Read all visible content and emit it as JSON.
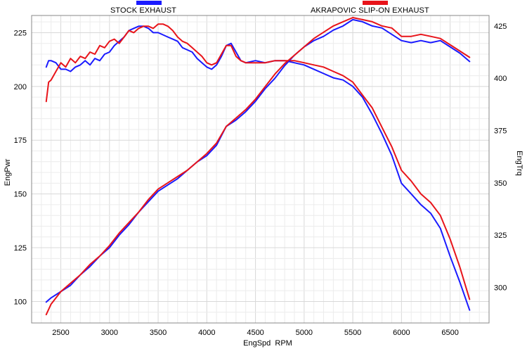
{
  "chart_data": {
    "type": "line",
    "title": "",
    "xlabel": "EngSpd  RPM",
    "ylabel_left": "EngPwr",
    "ylabel_right": "EngTrq",
    "xlim": [
      2200,
      6900
    ],
    "ylim_left": [
      90,
      233
    ],
    "ylim_right": [
      283,
      430
    ],
    "x_ticks": [
      2500,
      3000,
      3500,
      4000,
      4500,
      5000,
      5500,
      6000,
      6500
    ],
    "y_left_ticks": [
      100,
      125,
      150,
      175,
      200,
      225
    ],
    "y_right_ticks": [
      300,
      325,
      350,
      375,
      400,
      425
    ],
    "grid": true,
    "legend": [
      {
        "name": "STOCK EXHAUST",
        "color": "#1a1aff"
      },
      {
        "name": "AKRAPOVIC SLIP-ON EXHAUST",
        "color": "#e8141a"
      }
    ],
    "series": [
      {
        "name": "STOCK EXHAUST",
        "measure": "EngPwr",
        "axis": "left",
        "color": "#1a1aff",
        "x": [
          2350,
          2375,
          2400,
          2450,
          2500,
          2550,
          2600,
          2650,
          2700,
          2750,
          2800,
          2850,
          2900,
          2950,
          3000,
          3050,
          3100,
          3150,
          3200,
          3250,
          3300,
          3350,
          3400,
          3450,
          3500,
          3550,
          3600,
          3650,
          3700,
          3750,
          3800,
          3850,
          3900,
          3950,
          4000,
          4050,
          4100,
          4150,
          4200,
          4250,
          4300,
          4350,
          4400,
          4500,
          4600,
          4700,
          4800,
          4900,
          5000,
          5100,
          5200,
          5300,
          5400,
          5500,
          5600,
          5700,
          5800,
          5900,
          6000,
          6100,
          6200,
          6300,
          6400,
          6500,
          6600,
          6700
        ],
        "values": [
          209,
          212,
          212,
          211,
          208,
          208,
          207,
          209,
          210,
          212,
          210,
          213,
          212,
          215,
          216,
          219,
          221,
          223,
          226,
          227,
          228,
          228,
          227,
          225,
          225,
          224,
          223,
          222,
          221,
          218,
          217,
          216,
          213,
          211,
          209,
          208,
          210,
          214,
          219,
          220,
          216,
          212,
          211,
          212,
          211,
          212,
          212,
          211,
          210,
          208,
          206,
          204,
          203,
          200,
          195,
          187,
          178,
          168,
          155,
          150,
          145,
          141,
          134,
          121,
          109,
          96
        ]
      },
      {
        "name": "AKRAPOVIC SLIP-ON EXHAUST",
        "measure": "EngPwr",
        "axis": "left",
        "color": "#e8141a",
        "x": [
          2350,
          2375,
          2400,
          2450,
          2500,
          2550,
          2600,
          2650,
          2700,
          2750,
          2800,
          2850,
          2900,
          2950,
          3000,
          3050,
          3100,
          3150,
          3200,
          3250,
          3300,
          3350,
          3400,
          3450,
          3500,
          3550,
          3600,
          3650,
          3700,
          3750,
          3800,
          3850,
          3900,
          3950,
          4000,
          4050,
          4100,
          4150,
          4200,
          4250,
          4300,
          4350,
          4400,
          4500,
          4600,
          4700,
          4800,
          4900,
          5000,
          5100,
          5200,
          5300,
          5400,
          5500,
          5600,
          5700,
          5800,
          5900,
          6000,
          6100,
          6200,
          6300,
          6400,
          6500,
          6600,
          6700
        ],
        "values": [
          193,
          202,
          203,
          207,
          211,
          209,
          213,
          211,
          214,
          213,
          216,
          215,
          219,
          218,
          221,
          222,
          220,
          223,
          226,
          225,
          227,
          228,
          228,
          227,
          229,
          229,
          228,
          226,
          223,
          221,
          220,
          218,
          216,
          214,
          211,
          210,
          211,
          215,
          219,
          219,
          214,
          212,
          211,
          211,
          211,
          212,
          212,
          212,
          211,
          210,
          209,
          207,
          205,
          202,
          196,
          190,
          181,
          172,
          161,
          156,
          150,
          146,
          140,
          129,
          116,
          101
        ]
      },
      {
        "name": "STOCK EXHAUST",
        "measure": "EngTrq",
        "axis": "right",
        "color": "#1a1aff",
        "x": [
          2350,
          2400,
          2500,
          2600,
          2700,
          2800,
          2900,
          3000,
          3100,
          3200,
          3300,
          3400,
          3500,
          3600,
          3700,
          3800,
          3900,
          4000,
          4100,
          4200,
          4300,
          4400,
          4500,
          4600,
          4700,
          4800,
          4900,
          5000,
          5100,
          5200,
          5300,
          5400,
          5500,
          5600,
          5700,
          5800,
          5900,
          6000,
          6100,
          6200,
          6300,
          6400,
          6500,
          6600,
          6700
        ],
        "values": [
          293,
          295,
          298,
          301,
          306,
          310,
          315,
          319,
          325,
          330,
          336,
          341,
          346,
          349,
          352,
          356,
          360,
          363,
          368,
          377,
          380,
          384,
          389,
          395,
          400,
          406,
          411,
          415,
          418,
          420,
          423,
          425,
          428,
          427,
          425,
          424,
          421,
          418,
          417,
          418,
          417,
          418,
          415,
          412,
          408
        ]
      },
      {
        "name": "AKRAPOVIC SLIP-ON EXHAUST",
        "measure": "EngTrq",
        "axis": "right",
        "color": "#e8141a",
        "x": [
          2350,
          2400,
          2500,
          2600,
          2700,
          2800,
          2900,
          3000,
          3100,
          3200,
          3300,
          3400,
          3500,
          3600,
          3700,
          3800,
          3900,
          4000,
          4100,
          4200,
          4300,
          4400,
          4500,
          4600,
          4700,
          4800,
          4900,
          5000,
          5100,
          5200,
          5300,
          5400,
          5500,
          5600,
          5700,
          5800,
          5900,
          6000,
          6100,
          6200,
          6300,
          6400,
          6500,
          6600,
          6700
        ],
        "values": [
          287,
          292,
          298,
          302,
          306,
          311,
          315,
          320,
          326,
          331,
          336,
          342,
          347,
          350,
          353,
          356,
          360,
          364,
          369,
          377,
          381,
          385,
          390,
          396,
          402,
          407,
          411,
          415,
          419,
          422,
          425,
          427,
          429,
          428,
          427,
          425,
          424,
          420,
          420,
          421,
          420,
          419,
          416,
          413,
          410
        ]
      }
    ]
  }
}
